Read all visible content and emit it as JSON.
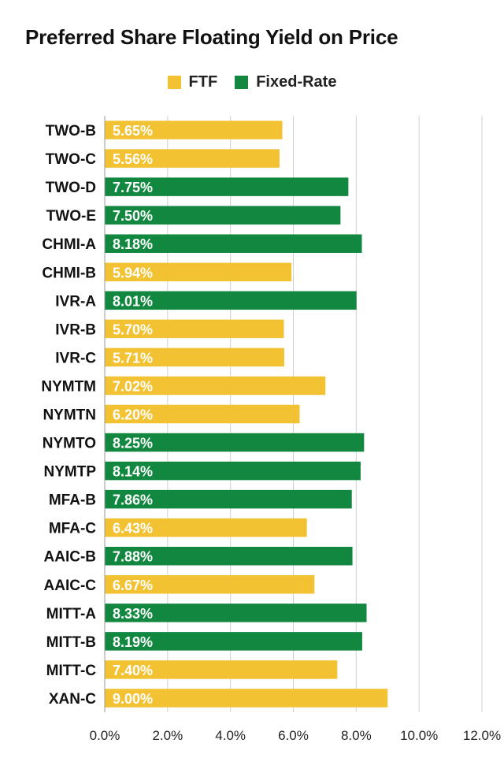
{
  "chart_data": {
    "type": "bar",
    "orientation": "horizontal",
    "title": "Preferred Share Floating Yield on Price",
    "xlim": [
      0,
      12
    ],
    "x_ticks": [
      "0.0%",
      "2.0%",
      "4.0%",
      "6.0%",
      "8.0%",
      "10.0%",
      "12.0%"
    ],
    "grid": true,
    "legend_position": "top-center",
    "legend": [
      {
        "key": "FTF",
        "label": "FTF",
        "color": "#F2C232"
      },
      {
        "key": "Fixed",
        "label": "Fixed-Rate",
        "color": "#12873F"
      }
    ],
    "categories": [
      "TWO-B",
      "TWO-C",
      "TWO-D",
      "TWO-E",
      "CHMI-A",
      "CHMI-B",
      "IVR-A",
      "IVR-B",
      "IVR-C",
      "NYMTM",
      "NYMTN",
      "NYMTO",
      "NYMTP",
      "MFA-B",
      "MFA-C",
      "AAIC-B",
      "AAIC-C",
      "MITT-A",
      "MITT-B",
      "MITT-C",
      "XAN-C"
    ],
    "values": [
      5.65,
      5.56,
      7.75,
      7.5,
      8.18,
      5.94,
      8.01,
      5.7,
      5.71,
      7.02,
      6.2,
      8.25,
      8.14,
      7.86,
      6.43,
      7.88,
      6.67,
      8.33,
      8.19,
      7.4,
      9.0
    ],
    "value_labels": [
      "5.65%",
      "5.56%",
      "7.75%",
      "7.50%",
      "8.18%",
      "5.94%",
      "8.01%",
      "5.70%",
      "5.71%",
      "7.02%",
      "6.20%",
      "8.25%",
      "8.14%",
      "7.86%",
      "6.43%",
      "7.88%",
      "6.67%",
      "8.33%",
      "8.19%",
      "7.40%",
      "9.00%"
    ],
    "bar_type": [
      "FTF",
      "FTF",
      "Fixed",
      "Fixed",
      "Fixed",
      "FTF",
      "Fixed",
      "FTF",
      "FTF",
      "FTF",
      "FTF",
      "Fixed",
      "Fixed",
      "Fixed",
      "FTF",
      "Fixed",
      "FTF",
      "Fixed",
      "Fixed",
      "FTF",
      "FTF"
    ]
  }
}
